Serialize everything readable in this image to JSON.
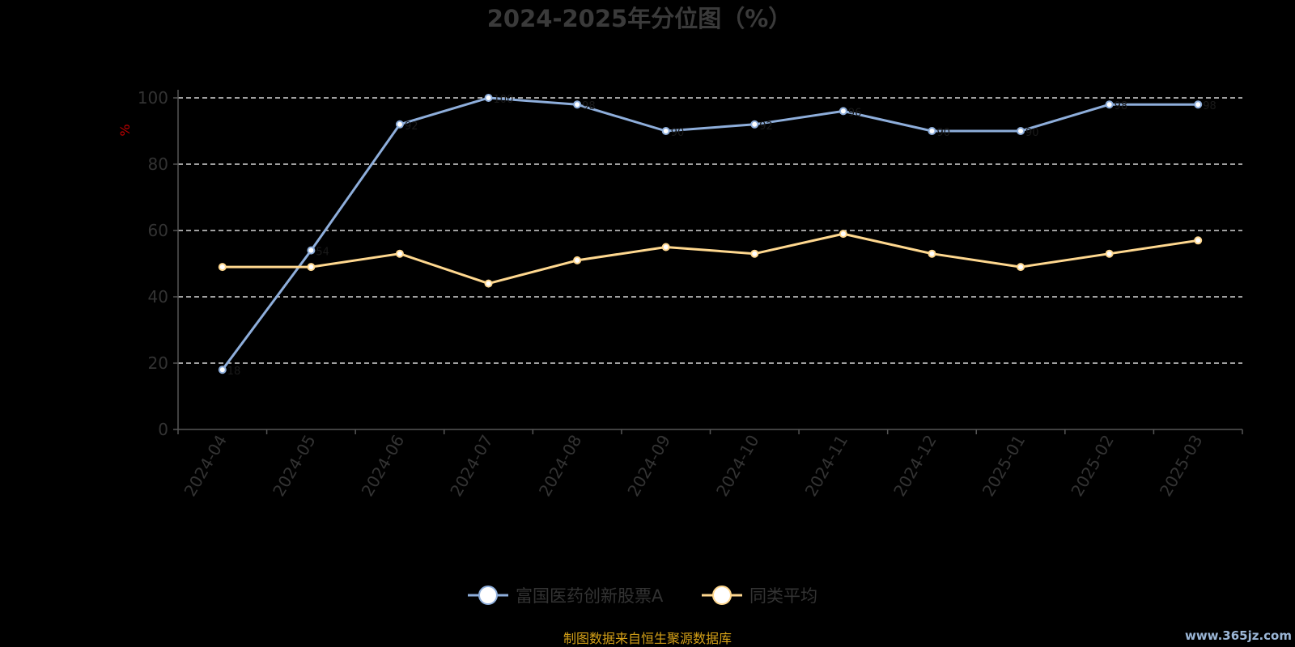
{
  "chart_data": {
    "type": "line",
    "title": "2024-2025年分位图（%）",
    "ylabel": "%",
    "ylim": [
      0,
      100
    ],
    "yticks": [
      0,
      20,
      40,
      60,
      80,
      100
    ],
    "grid": true,
    "legend_position": "bottom",
    "x": [
      "2024-04",
      "2024-05",
      "2024-06",
      "2024-07",
      "2024-08",
      "2024-09",
      "2024-10",
      "2024-11",
      "2024-12",
      "2025-01",
      "2025-02",
      "2025-03"
    ],
    "series": [
      {
        "name": "富国医药创新股票A",
        "color": "#8eaedb",
        "values": [
          18,
          54,
          92,
          100,
          98,
          90,
          92,
          96,
          90,
          90,
          98,
          98
        ]
      },
      {
        "name": "同类平均",
        "color": "#ffd88f",
        "values": [
          49,
          49,
          53,
          44,
          51,
          55,
          53,
          59,
          53,
          49,
          53,
          57
        ]
      }
    ]
  },
  "source_text": "制图数据来自恒生聚源数据库",
  "watermark_text": "www.365jz.com",
  "colors": {
    "background": "#000000",
    "axis": "#555555",
    "grid": "#ffffff",
    "source": "#d4a017"
  }
}
